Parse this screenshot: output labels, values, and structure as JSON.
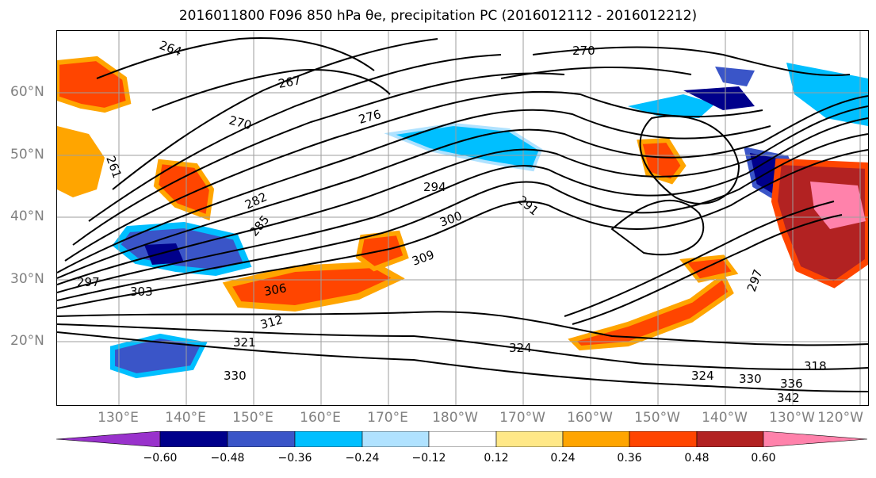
{
  "title": "2016011800 F096 850 hPa θe, precipitation PC (2016012112 - 2016012212)",
  "map": {
    "lat_labels": [
      "60°N",
      "50°N",
      "40°N",
      "30°N",
      "20°N"
    ],
    "lon_labels": [
      "130°E",
      "140°E",
      "150°E",
      "160°E",
      "170°E",
      "180°W",
      "170°W",
      "160°W",
      "150°W",
      "140°W",
      "130°W",
      "120°W"
    ],
    "contour_labels": [
      "264",
      "270",
      "276",
      "282",
      "294",
      "300",
      "309",
      "306",
      "312",
      "321",
      "330",
      "324",
      "267",
      "270",
      "261",
      "297",
      "303",
      "285",
      "291",
      "318",
      "342",
      "336",
      "330",
      "324",
      "297"
    ]
  },
  "colorbar": {
    "ticks": [
      "−0.60",
      "−0.48",
      "−0.36",
      "−0.24",
      "−0.12",
      "0.12",
      "0.24",
      "0.36",
      "0.48",
      "0.60"
    ],
    "colors": [
      "#9932cc",
      "#00008b",
      "#3a55c8",
      "#00bfff",
      "#b0e2ff",
      "#ffffff",
      "#ffe887",
      "#ffa500",
      "#ff4500",
      "#b22222",
      "#ff82ab"
    ]
  }
}
